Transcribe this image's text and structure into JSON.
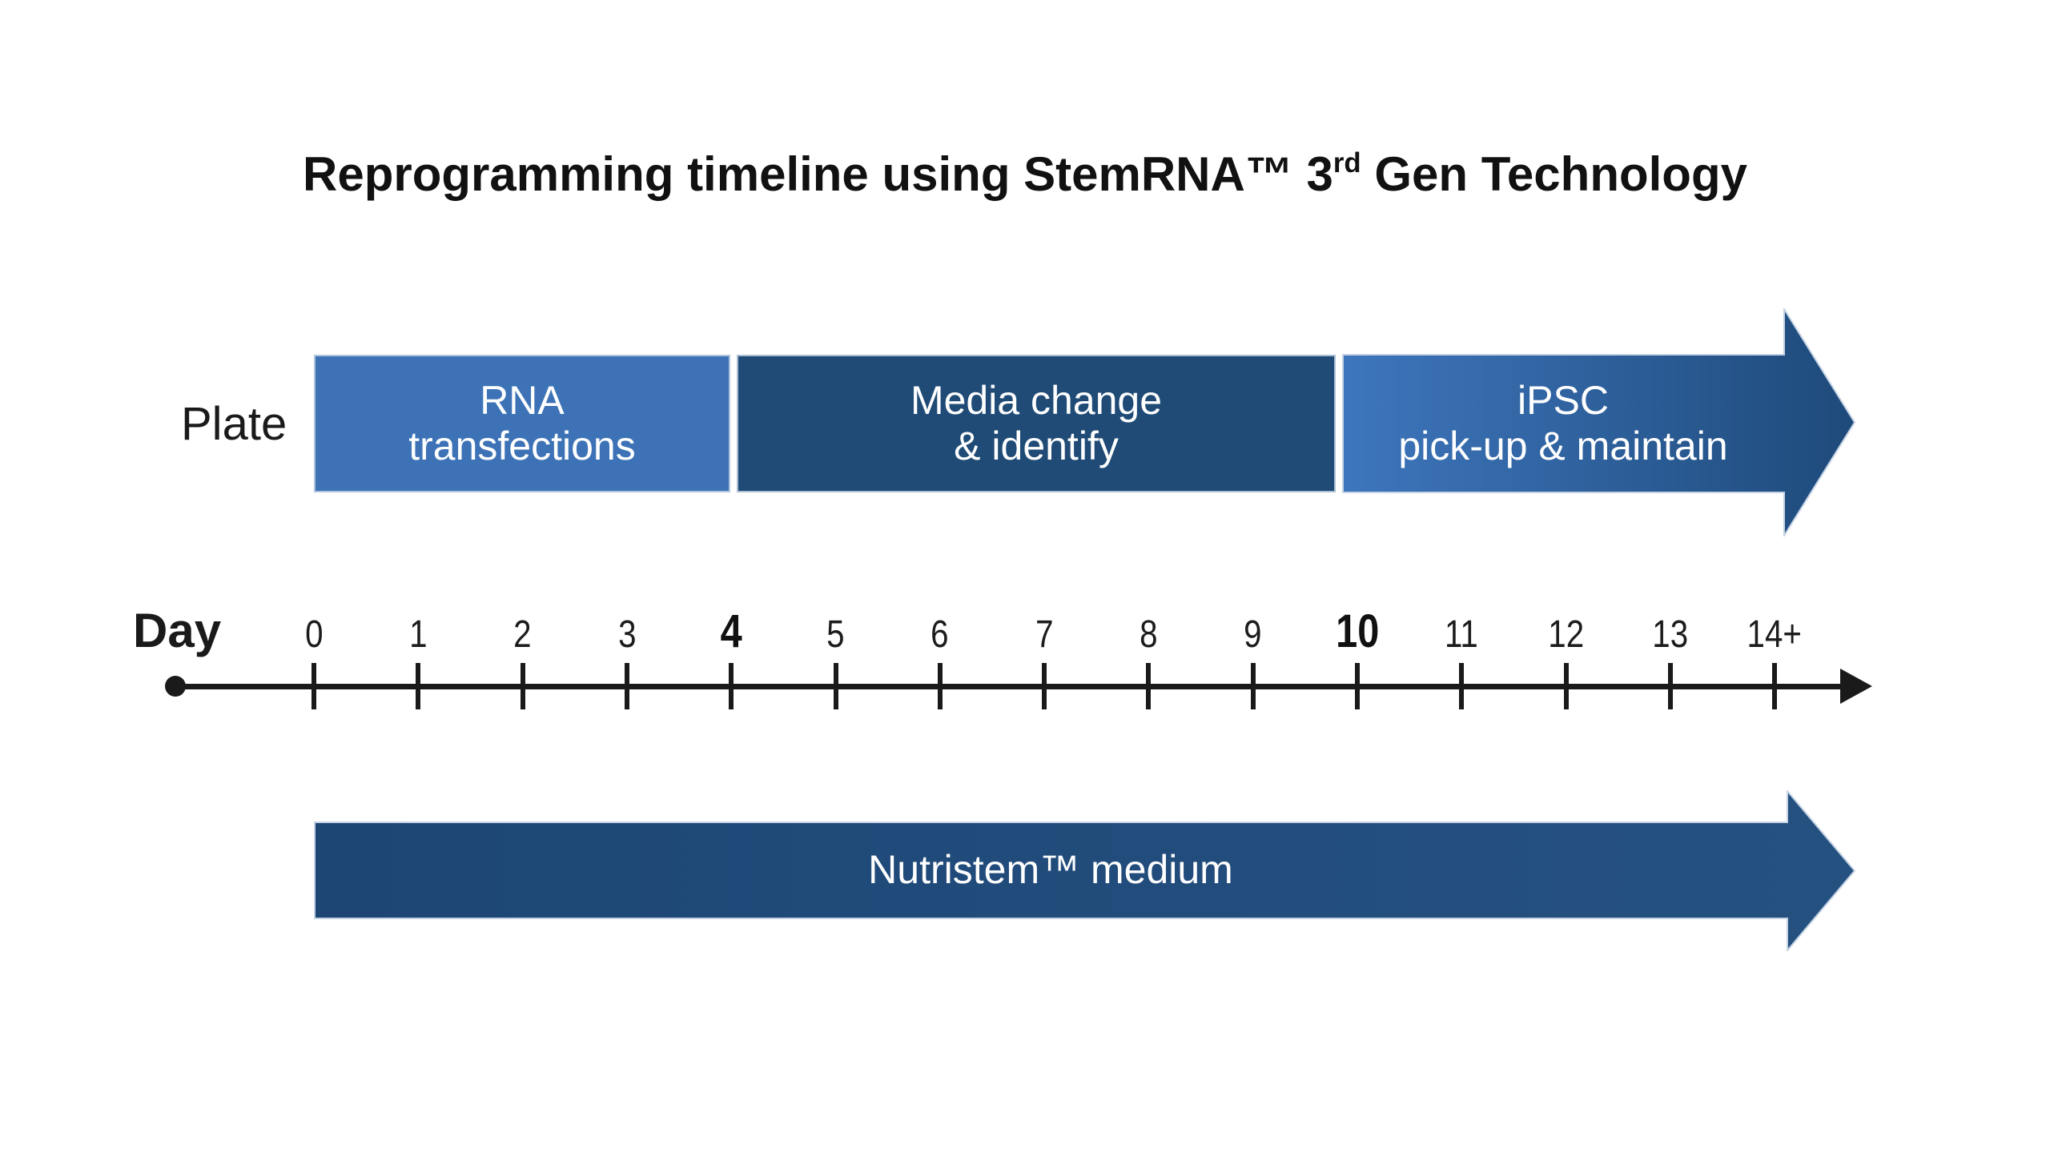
{
  "title": {
    "prefix": "Reprogramming timeline using StemRNA™ 3",
    "superscript": "rd",
    "suffix": " Gen Technology"
  },
  "plate": {
    "row_label": "Plate",
    "segments": [
      {
        "name": "rna-transfections",
        "line1": "RNA",
        "line2": "transfections",
        "color": "#3d73b6",
        "span_days": "0-4"
      },
      {
        "name": "media-change-identify",
        "line1": "Media change",
        "line2": "& identify",
        "color": "#1f4b76",
        "span_days": "4-10"
      },
      {
        "name": "ipsc-pickup-maintain",
        "line1": "iPSC",
        "line2": "pick-up & maintain",
        "color_start": "#3e76bd",
        "color_end": "#1e4a7a",
        "span_days": "10-14+"
      }
    ],
    "outline_color": "#c5d3e4",
    "text_color": "#ffffff"
  },
  "day_axis": {
    "label": "Day",
    "axis_color": "#1a1a1a",
    "days": [
      {
        "label": "0",
        "emphasis": false
      },
      {
        "label": "1",
        "emphasis": false
      },
      {
        "label": "2",
        "emphasis": false
      },
      {
        "label": "3",
        "emphasis": false
      },
      {
        "label": "4",
        "emphasis": true
      },
      {
        "label": "5",
        "emphasis": false
      },
      {
        "label": "6",
        "emphasis": false
      },
      {
        "label": "7",
        "emphasis": false
      },
      {
        "label": "8",
        "emphasis": false
      },
      {
        "label": "9",
        "emphasis": false
      },
      {
        "label": "10",
        "emphasis": true
      },
      {
        "label": "11",
        "emphasis": false
      },
      {
        "label": "12",
        "emphasis": false
      },
      {
        "label": "13",
        "emphasis": false
      },
      {
        "label": "14+",
        "emphasis": false
      }
    ]
  },
  "medium_bar": {
    "label": "Nutristem™ medium",
    "color_start": "#1d4674",
    "color_end": "#255181",
    "span_days": "0-14+"
  }
}
